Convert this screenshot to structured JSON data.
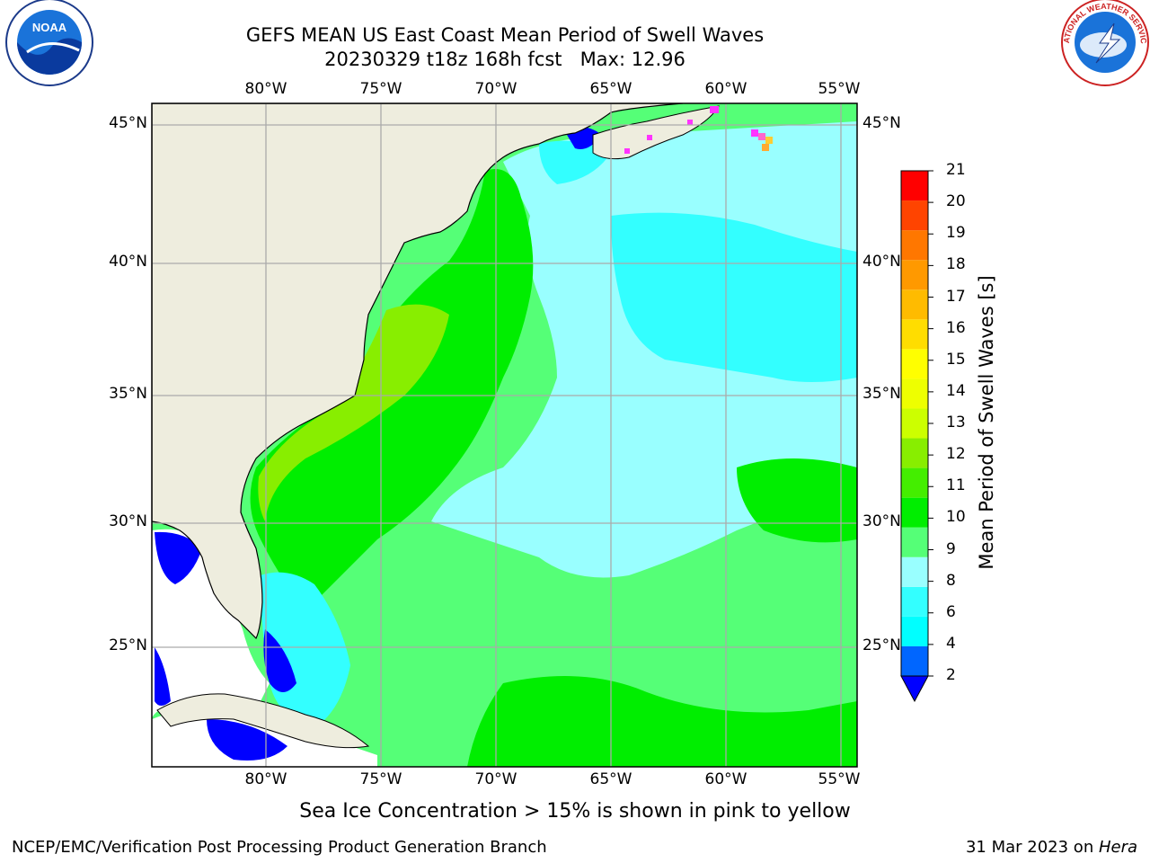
{
  "title": {
    "line1": "GEFS MEAN US East Coast Mean Period of Swell Waves",
    "line2": "20230329 t18z 168h fcst   Max: 12.96"
  },
  "map": {
    "lon_labels": [
      "80°W",
      "75°W",
      "70°W",
      "65°W",
      "60°W",
      "55°W"
    ],
    "lat_labels": [
      "45°N",
      "40°N",
      "35°N",
      "30°N",
      "25°N"
    ],
    "colors": {
      "land": "#eeedde",
      "no_data": "#ffffff",
      "blue": "#0000ff",
      "cyan": "#33ffff",
      "light_cyan": "#99ffff",
      "light_green": "#55ff77",
      "green": "#00ee00",
      "yellow_green": "#88ee00",
      "gridline": "#aaaaaa"
    }
  },
  "colorbar": {
    "label": "Mean Period of Swell Waves [s]",
    "ticks": [
      "21",
      "20",
      "19",
      "18",
      "17",
      "16",
      "15",
      "14",
      "13",
      "12",
      "11",
      "10",
      "9",
      "8",
      "6",
      "4",
      "2"
    ],
    "colors_bottom_to_top": [
      "#0066ff",
      "#00ffff",
      "#33ffff",
      "#99ffff",
      "#55ff77",
      "#00ee00",
      "#44ee00",
      "#88ee00",
      "#ccff00",
      "#eeff00",
      "#ffff00",
      "#ffdd00",
      "#ffbb00",
      "#ff9900",
      "#ff7700",
      "#ff4400",
      "#ff0000"
    ],
    "extend_color": "#0000ff"
  },
  "note": "Sea Ice Concentration > 15% is shown in pink to yellow",
  "footer": {
    "left": "NCEP/EMC/Verification Post Processing Product Generation Branch",
    "date": "31 Mar 2023 on ",
    "machine": "Hera"
  },
  "logos": {
    "noaa_text": "NOAA",
    "nws_text": "NATIONAL WEATHER SERVICE"
  }
}
